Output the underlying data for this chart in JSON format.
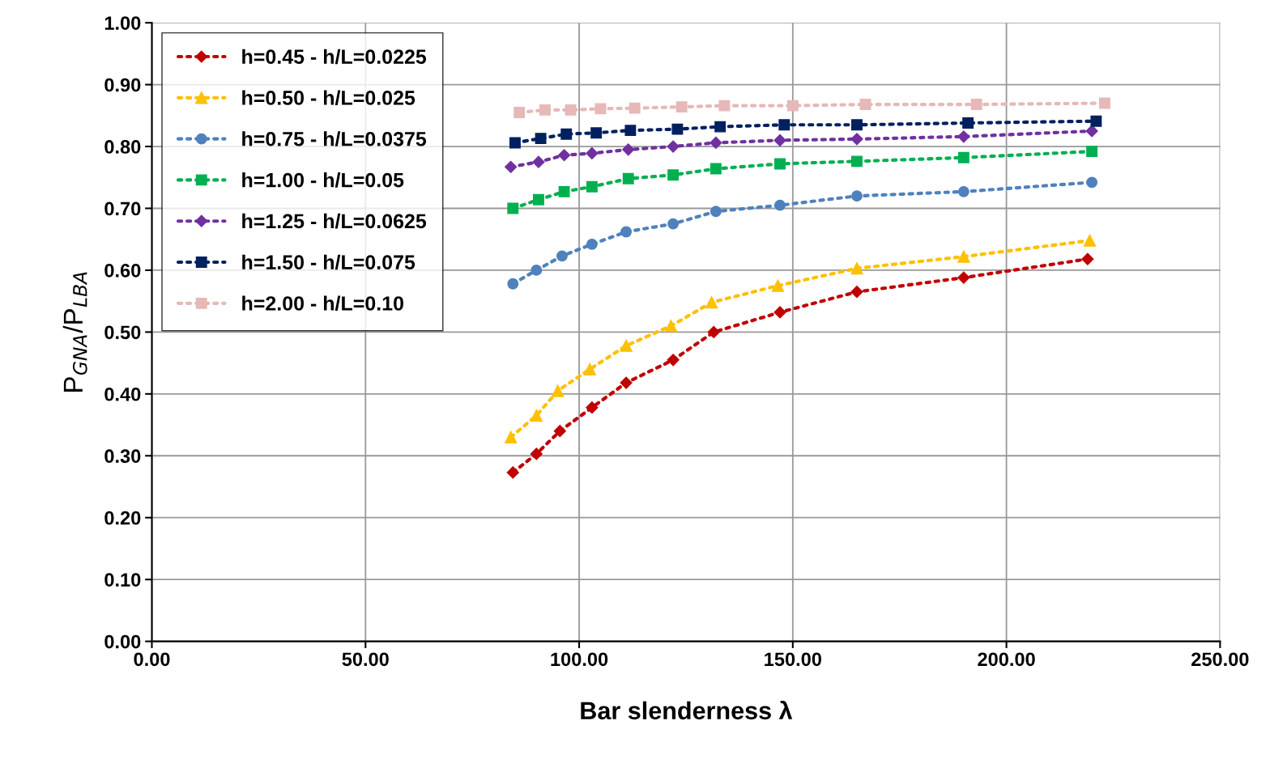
{
  "chart_data": {
    "type": "line",
    "xlabel": "Bar slenderness λ",
    "ylabel": "P$_{GNA}$/P$_{LBA}$",
    "xlim": [
      0,
      250
    ],
    "ylim": [
      0,
      1
    ],
    "xticks": [
      {
        "value": 0,
        "label": "0.00"
      },
      {
        "value": 50,
        "label": "50.00"
      },
      {
        "value": 100,
        "label": "100.00"
      },
      {
        "value": 150,
        "label": "150.00"
      },
      {
        "value": 200,
        "label": "200.00"
      },
      {
        "value": 250,
        "label": "250.00"
      }
    ],
    "yticks": [
      {
        "value": 0,
        "label": "0.00"
      },
      {
        "value": 0.1,
        "label": "0.10"
      },
      {
        "value": 0.2,
        "label": "0.20"
      },
      {
        "value": 0.3,
        "label": "0.30"
      },
      {
        "value": 0.4,
        "label": "0.40"
      },
      {
        "value": 0.5,
        "label": "0.50"
      },
      {
        "value": 0.6,
        "label": "0.60"
      },
      {
        "value": 0.7,
        "label": "0.70"
      },
      {
        "value": 0.8,
        "label": "0.80"
      },
      {
        "value": 0.9,
        "label": "0.90"
      },
      {
        "value": 1,
        "label": "1.00"
      }
    ],
    "grid": true,
    "legend": "top left",
    "line_style": "dotted",
    "series": [
      {
        "name": "h=0.45 - h/L=0.0225",
        "color": "#c00000",
        "marker": "diamond",
        "x": [
          84.5,
          90,
          95.5,
          103,
          111,
          122,
          131.5,
          147,
          165,
          190,
          219
        ],
        "values": [
          0.273,
          0.303,
          0.34,
          0.378,
          0.418,
          0.455,
          0.5,
          0.532,
          0.565,
          0.588,
          0.618
        ]
      },
      {
        "name": "h=0.50 - h/L=0.025",
        "color": "#ffc000",
        "marker": "triangle",
        "x": [
          84,
          90,
          95,
          102.5,
          111,
          121.5,
          131,
          146.5,
          165,
          190,
          219.5
        ],
        "values": [
          0.33,
          0.365,
          0.405,
          0.44,
          0.478,
          0.51,
          0.548,
          0.575,
          0.603,
          0.622,
          0.648
        ]
      },
      {
        "name": "h=0.75 - h/L=0.0375",
        "color": "#4f81bd",
        "marker": "circle",
        "x": [
          84.5,
          90,
          96,
          103,
          111,
          122,
          132,
          147,
          165,
          190,
          220
        ],
        "values": [
          0.578,
          0.6,
          0.623,
          0.642,
          0.662,
          0.675,
          0.695,
          0.705,
          0.72,
          0.727,
          0.742
        ]
      },
      {
        "name": "h=1.00 - h/L=0.05",
        "color": "#00b050",
        "marker": "square",
        "x": [
          84.5,
          90.5,
          96.5,
          103,
          111.5,
          122,
          132,
          147,
          165,
          190,
          220
        ],
        "values": [
          0.7,
          0.714,
          0.727,
          0.735,
          0.748,
          0.754,
          0.764,
          0.772,
          0.776,
          0.782,
          0.792
        ]
      },
      {
        "name": "h=1.25 - h/L=0.0625",
        "color": "#7030a0",
        "marker": "diamond",
        "x": [
          84,
          90.5,
          96.5,
          103,
          111.5,
          122,
          132,
          147,
          165,
          190,
          220
        ],
        "values": [
          0.767,
          0.775,
          0.786,
          0.789,
          0.795,
          0.8,
          0.806,
          0.81,
          0.812,
          0.816,
          0.825
        ]
      },
      {
        "name": "h=1.50 - h/L=0.075",
        "color": "#002060",
        "marker": "square",
        "x": [
          85,
          91,
          97,
          104,
          112,
          123,
          133,
          148,
          165,
          191,
          221
        ],
        "values": [
          0.806,
          0.813,
          0.82,
          0.822,
          0.826,
          0.828,
          0.832,
          0.835,
          0.835,
          0.838,
          0.841
        ]
      },
      {
        "name": "h=2.00 - h/L=0.10",
        "color": "#e6b8b7",
        "marker": "square",
        "x": [
          86,
          92,
          98,
          105,
          113,
          124,
          134,
          150,
          167,
          193,
          223
        ],
        "values": [
          0.855,
          0.859,
          0.859,
          0.861,
          0.862,
          0.864,
          0.866,
          0.866,
          0.868,
          0.868,
          0.87
        ]
      }
    ]
  }
}
